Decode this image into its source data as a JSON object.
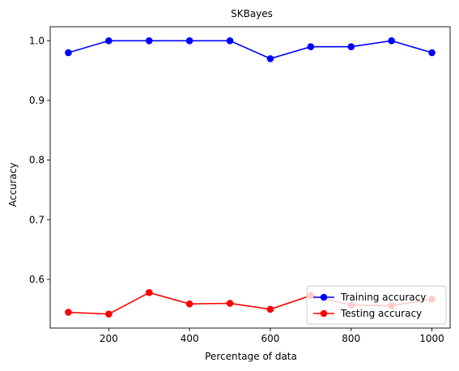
{
  "chart_data": {
    "type": "line",
    "title": "SKBayes",
    "xlabel": "Percentage of data",
    "ylabel": "Accuracy",
    "x": [
      100,
      200,
      300,
      400,
      500,
      600,
      700,
      800,
      900,
      1000
    ],
    "xlim": [
      55,
      1045
    ],
    "ylim": [
      0.5185,
      1.0235
    ],
    "xticks": [
      200,
      400,
      600,
      800,
      1000
    ],
    "yticks": [
      0.6,
      0.7,
      0.8,
      0.9,
      1.0
    ],
    "grid": false,
    "legend_position": "lower-right",
    "series": [
      {
        "name": "Training accuracy",
        "color": "#0000ff",
        "marker": "circle",
        "values": [
          0.98,
          1.0,
          1.0,
          1.0,
          1.0,
          0.97,
          0.99,
          0.99,
          1.0,
          0.98
        ]
      },
      {
        "name": "Testing accuracy",
        "color": "#ff0000",
        "marker": "circle",
        "values": [
          0.545,
          0.542,
          0.578,
          0.559,
          0.56,
          0.55,
          0.573,
          0.557,
          0.556,
          0.567
        ]
      }
    ]
  }
}
